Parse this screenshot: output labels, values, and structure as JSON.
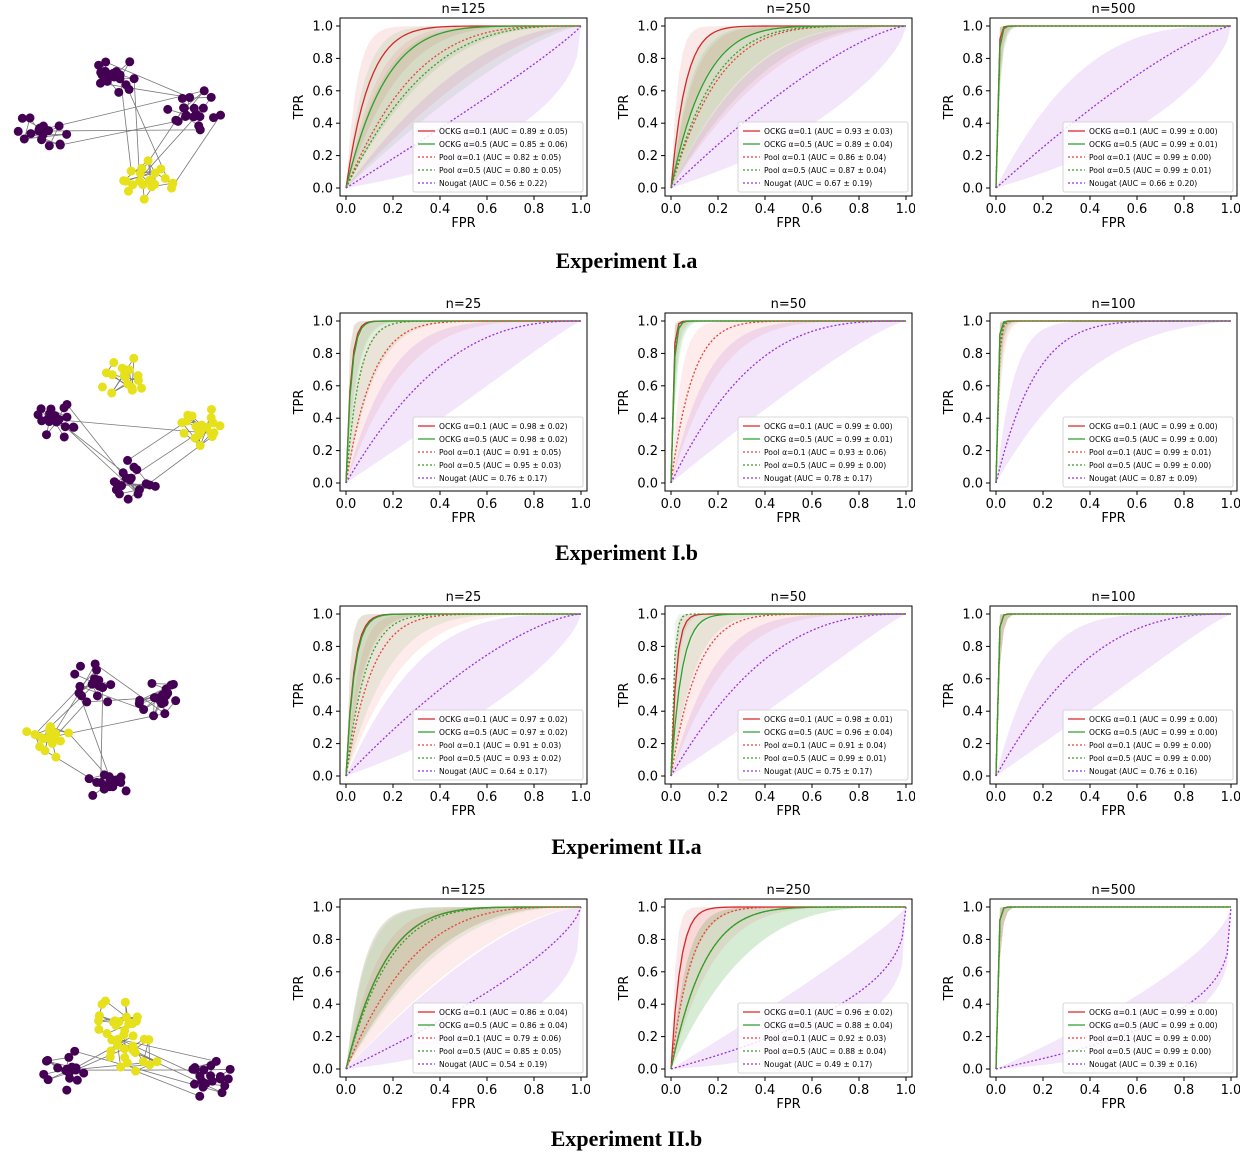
{
  "colors": {
    "ockg01": "#d62728",
    "ockg05": "#2ca02c",
    "pool01": "#e8403a",
    "pool05": "#3a9a2a",
    "nougat": "#9b30d9",
    "purple_node": "#440154",
    "yellow_node": "#e6e11a",
    "edge": "#777777"
  },
  "axis": {
    "xlabel": "FPR",
    "ylabel": "TPR",
    "xticks": [
      "0.0",
      "0.2",
      "0.4",
      "0.6",
      "0.8",
      "1.0"
    ],
    "yticks": [
      "0.0",
      "0.2",
      "0.4",
      "0.6",
      "0.8",
      "1.0"
    ],
    "xlim": [
      0,
      1
    ],
    "ylim": [
      0,
      1
    ]
  },
  "series_labels_tpl": [
    "OCKG α=0.1",
    "OCKG α=0.5",
    "Pool α=0.1",
    "Pool α=0.5",
    "Nougat"
  ],
  "sections": [
    {
      "title": "Experiment I.a",
      "graph": "four-cluster",
      "panels": [
        {
          "n_label": "n=125",
          "auc": [
            "(AUC = 0.89 ± 0.05)",
            "(AUC = 0.85 ± 0.06)",
            "(AUC = 0.82 ± 0.05)",
            "(AUC = 0.80 ± 0.05)",
            "(AUC = 0.56 ± 0.22)"
          ],
          "k": [
            10,
            6,
            3.5,
            3,
            0.9
          ]
        },
        {
          "n_label": "n=250",
          "auc": [
            "(AUC = 0.93 ± 0.03)",
            "(AUC = 0.89 ± 0.04)",
            "(AUC = 0.86 ± 0.04)",
            "(AUC = 0.87 ± 0.04)",
            "(AUC = 0.67 ± 0.19)"
          ],
          "k": [
            16,
            7,
            5,
            5.5,
            1.4
          ]
        },
        {
          "n_label": "n=500",
          "auc": [
            "(AUC = 0.99 ± 0.00)",
            "(AUC = 0.99 ± 0.01)",
            "(AUC = 0.99 ± 0.00)",
            "(AUC = 0.99 ± 0.01)",
            "(AUC = 0.66 ± 0.20)"
          ],
          "k": [
            150,
            120,
            140,
            130,
            1.3
          ]
        }
      ]
    },
    {
      "title": "Experiment I.b",
      "graph": "four-cluster-b",
      "panels": [
        {
          "n_label": "n=25",
          "auc": [
            "(AUC = 0.98 ± 0.02)",
            "(AUC = 0.98 ± 0.02)",
            "(AUC = 0.91 ± 0.05)",
            "(AUC = 0.95 ± 0.03)",
            "(AUC = 0.76 ± 0.17)"
          ],
          "k": [
            50,
            45,
            9,
            18,
            2.5
          ]
        },
        {
          "n_label": "n=50",
          "auc": [
            "(AUC = 0.99 ± 0.00)",
            "(AUC = 0.99 ± 0.01)",
            "(AUC = 0.93 ± 0.06)",
            "(AUC = 0.99 ± 0.00)",
            "(AUC = 0.78 ± 0.17)"
          ],
          "k": [
            120,
            90,
            11,
            100,
            3
          ]
        },
        {
          "n_label": "n=100",
          "auc": [
            "(AUC = 0.99 ± 0.00)",
            "(AUC = 0.99 ± 0.00)",
            "(AUC = 0.99 ± 0.01)",
            "(AUC = 0.99 ± 0.00)",
            "(AUC = 0.87 ± 0.09)"
          ],
          "k": [
            150,
            150,
            100,
            120,
            6
          ]
        }
      ]
    },
    {
      "title": "Experiment II.a",
      "graph": "tree",
      "panels": [
        {
          "n_label": "n=25",
          "auc": [
            "(AUC = 0.97 ± 0.02)",
            "(AUC = 0.97 ± 0.02)",
            "(AUC = 0.91 ± 0.03)",
            "(AUC = 0.93 ± 0.02)",
            "(AUC = 0.64 ± 0.17)"
          ],
          "k": [
            30,
            28,
            9,
            12,
            1.5
          ]
        },
        {
          "n_label": "n=50",
          "auc": [
            "(AUC = 0.98 ± 0.01)",
            "(AUC = 0.96 ± 0.04)",
            "(AUC = 0.91 ± 0.04)",
            "(AUC = 0.99 ± 0.01)",
            "(AUC = 0.75 ± 0.17)"
          ],
          "k": [
            45,
            22,
            9,
            80,
            2.5
          ]
        },
        {
          "n_label": "n=100",
          "auc": [
            "(AUC = 0.99 ± 0.00)",
            "(AUC = 0.99 ± 0.00)",
            "(AUC = 0.99 ± 0.00)",
            "(AUC = 0.99 ± 0.00)",
            "(AUC = 0.76 ± 0.16)"
          ],
          "k": [
            150,
            150,
            150,
            150,
            2.6
          ]
        }
      ]
    },
    {
      "title": "Experiment II.b",
      "graph": "tree-b",
      "panels": [
        {
          "n_label": "n=125",
          "auc": [
            "(AUC = 0.86 ± 0.04)",
            "(AUC = 0.86 ± 0.04)",
            "(AUC = 0.79 ± 0.06)",
            "(AUC = 0.85 ± 0.05)",
            "(AUC = 0.54 ± 0.19)"
          ],
          "k": [
            6,
            6,
            3.5,
            5.5,
            0.7
          ]
        },
        {
          "n_label": "n=250",
          "auc": [
            "(AUC = 0.96 ± 0.02)",
            "(AUC = 0.88 ± 0.04)",
            "(AUC = 0.92 ± 0.03)",
            "(AUC = 0.88 ± 0.04)",
            "(AUC = 0.49 ± 0.17)"
          ],
          "k": [
            25,
            7,
            12,
            7,
            0.4
          ]
        },
        {
          "n_label": "n=500",
          "auc": [
            "(AUC = 0.99 ± 0.00)",
            "(AUC = 0.99 ± 0.00)",
            "(AUC = 0.99 ± 0.00)",
            "(AUC = 0.99 ± 0.00)",
            "(AUC = 0.39 ± 0.16)"
          ],
          "k": [
            150,
            150,
            150,
            150,
            0.3
          ]
        }
      ]
    }
  ],
  "chart_data": [
    {
      "type": "line",
      "title": "n=125",
      "xlabel": "FPR",
      "ylabel": "TPR",
      "xlim": [
        0,
        1
      ],
      "ylim": [
        0,
        1
      ],
      "series": [
        {
          "name": "OCKG α=0.1 (AUC = 0.89 ± 0.05)",
          "auc": 0.89
        },
        {
          "name": "OCKG α=0.5 (AUC = 0.85 ± 0.06)",
          "auc": 0.85
        },
        {
          "name": "Pool α=0.1 (AUC = 0.82 ± 0.05)",
          "auc": 0.82
        },
        {
          "name": "Pool α=0.5 (AUC = 0.80 ± 0.05)",
          "auc": 0.8
        },
        {
          "name": "Nougat (AUC = 0.56 ± 0.22)",
          "auc": 0.56
        }
      ]
    },
    {
      "type": "line",
      "title": "n=250",
      "xlabel": "FPR",
      "ylabel": "TPR",
      "xlim": [
        0,
        1
      ],
      "ylim": [
        0,
        1
      ],
      "series": [
        {
          "name": "OCKG α=0.1 (AUC = 0.93 ± 0.03)",
          "auc": 0.93
        },
        {
          "name": "OCKG α=0.5 (AUC = 0.89 ± 0.04)",
          "auc": 0.89
        },
        {
          "name": "Pool α=0.1 (AUC = 0.86 ± 0.04)",
          "auc": 0.86
        },
        {
          "name": "Pool α=0.5 (AUC = 0.87 ± 0.04)",
          "auc": 0.87
        },
        {
          "name": "Nougat (AUC = 0.67 ± 0.19)",
          "auc": 0.67
        }
      ]
    },
    {
      "type": "line",
      "title": "n=500",
      "xlabel": "FPR",
      "ylabel": "TPR",
      "xlim": [
        0,
        1
      ],
      "ylim": [
        0,
        1
      ],
      "series": [
        {
          "name": "OCKG α=0.1 (AUC = 0.99 ± 0.00)",
          "auc": 0.99
        },
        {
          "name": "OCKG α=0.5 (AUC = 0.99 ± 0.01)",
          "auc": 0.99
        },
        {
          "name": "Pool α=0.1 (AUC = 0.99 ± 0.00)",
          "auc": 0.99
        },
        {
          "name": "Pool α=0.5 (AUC = 0.99 ± 0.01)",
          "auc": 0.99
        },
        {
          "name": "Nougat (AUC = 0.66 ± 0.20)",
          "auc": 0.66
        }
      ]
    },
    {
      "type": "line",
      "title": "n=25",
      "xlabel": "FPR",
      "ylabel": "TPR",
      "xlim": [
        0,
        1
      ],
      "ylim": [
        0,
        1
      ],
      "series": [
        {
          "name": "OCKG α=0.1 (AUC = 0.98 ± 0.02)",
          "auc": 0.98
        },
        {
          "name": "OCKG α=0.5 (AUC = 0.98 ± 0.02)",
          "auc": 0.98
        },
        {
          "name": "Pool α=0.1 (AUC = 0.91 ± 0.05)",
          "auc": 0.91
        },
        {
          "name": "Pool α=0.5 (AUC = 0.95 ± 0.03)",
          "auc": 0.95
        },
        {
          "name": "Nougat (AUC = 0.76 ± 0.17)",
          "auc": 0.76
        }
      ]
    },
    {
      "type": "line",
      "title": "n=50",
      "xlabel": "FPR",
      "ylabel": "TPR",
      "xlim": [
        0,
        1
      ],
      "ylim": [
        0,
        1
      ],
      "series": [
        {
          "name": "OCKG α=0.1 (AUC = 0.99 ± 0.00)",
          "auc": 0.99
        },
        {
          "name": "OCKG α=0.5 (AUC = 0.99 ± 0.01)",
          "auc": 0.99
        },
        {
          "name": "Pool α=0.1 (AUC = 0.93 ± 0.06)",
          "auc": 0.93
        },
        {
          "name": "Pool α=0.5 (AUC = 0.99 ± 0.00)",
          "auc": 0.99
        },
        {
          "name": "Nougat (AUC = 0.78 ± 0.17)",
          "auc": 0.78
        }
      ]
    },
    {
      "type": "line",
      "title": "n=100",
      "xlabel": "FPR",
      "ylabel": "TPR",
      "xlim": [
        0,
        1
      ],
      "ylim": [
        0,
        1
      ],
      "series": [
        {
          "name": "OCKG α=0.1 (AUC = 0.99 ± 0.00)",
          "auc": 0.99
        },
        {
          "name": "OCKG α=0.5 (AUC = 0.99 ± 0.00)",
          "auc": 0.99
        },
        {
          "name": "Pool α=0.1 (AUC = 0.99 ± 0.01)",
          "auc": 0.99
        },
        {
          "name": "Pool α=0.5 (AUC = 0.99 ± 0.00)",
          "auc": 0.99
        },
        {
          "name": "Nougat (AUC = 0.87 ± 0.09)",
          "auc": 0.87
        }
      ]
    },
    {
      "type": "line",
      "title": "n=25",
      "xlabel": "FPR",
      "ylabel": "TPR",
      "xlim": [
        0,
        1
      ],
      "ylim": [
        0,
        1
      ],
      "series": [
        {
          "name": "OCKG α=0.1 (AUC = 0.97 ± 0.02)",
          "auc": 0.97
        },
        {
          "name": "OCKG α=0.5 (AUC = 0.97 ± 0.02)",
          "auc": 0.97
        },
        {
          "name": "Pool α=0.1 (AUC = 0.91 ± 0.03)",
          "auc": 0.91
        },
        {
          "name": "Pool α=0.5 (AUC = 0.93 ± 0.02)",
          "auc": 0.93
        },
        {
          "name": "Nougat (AUC = 0.64 ± 0.17)",
          "auc": 0.64
        }
      ]
    },
    {
      "type": "line",
      "title": "n=50",
      "xlabel": "FPR",
      "ylabel": "TPR",
      "xlim": [
        0,
        1
      ],
      "ylim": [
        0,
        1
      ],
      "series": [
        {
          "name": "OCKG α=0.1 (AUC = 0.98 ± 0.01)",
          "auc": 0.98
        },
        {
          "name": "OCKG α=0.5 (AUC = 0.96 ± 0.04)",
          "auc": 0.96
        },
        {
          "name": "Pool α=0.1 (AUC = 0.91 ± 0.04)",
          "auc": 0.91
        },
        {
          "name": "Pool α=0.5 (AUC = 0.99 ± 0.01)",
          "auc": 0.99
        },
        {
          "name": "Nougat (AUC = 0.75 ± 0.17)",
          "auc": 0.75
        }
      ]
    },
    {
      "type": "line",
      "title": "n=100",
      "xlabel": "FPR",
      "ylabel": "TPR",
      "xlim": [
        0,
        1
      ],
      "ylim": [
        0,
        1
      ],
      "series": [
        {
          "name": "OCKG α=0.1 (AUC = 0.99 ± 0.00)",
          "auc": 0.99
        },
        {
          "name": "OCKG α=0.5 (AUC = 0.99 ± 0.00)",
          "auc": 0.99
        },
        {
          "name": "Pool α=0.1 (AUC = 0.99 ± 0.00)",
          "auc": 0.99
        },
        {
          "name": "Pool α=0.5 (AUC = 0.99 ± 0.00)",
          "auc": 0.99
        },
        {
          "name": "Nougat (AUC = 0.76 ± 0.16)",
          "auc": 0.76
        }
      ]
    },
    {
      "type": "line",
      "title": "n=125",
      "xlabel": "FPR",
      "ylabel": "TPR",
      "xlim": [
        0,
        1
      ],
      "ylim": [
        0,
        1
      ],
      "series": [
        {
          "name": "OCKG α=0.1 (AUC = 0.86 ± 0.04)",
          "auc": 0.86
        },
        {
          "name": "OCKG α=0.5 (AUC = 0.86 ± 0.04)",
          "auc": 0.86
        },
        {
          "name": "Pool α=0.1 (AUC = 0.79 ± 0.06)",
          "auc": 0.79
        },
        {
          "name": "Pool α=0.5 (AUC = 0.85 ± 0.05)",
          "auc": 0.85
        },
        {
          "name": "Nougat (AUC = 0.54 ± 0.19)",
          "auc": 0.54
        }
      ]
    },
    {
      "type": "line",
      "title": "n=250",
      "xlabel": "FPR",
      "ylabel": "TPR",
      "xlim": [
        0,
        1
      ],
      "ylim": [
        0,
        1
      ],
      "series": [
        {
          "name": "OCKG α=0.1 (AUC = 0.96 ± 0.02)",
          "auc": 0.96
        },
        {
          "name": "OCKG α=0.5 (AUC = 0.88 ± 0.04)",
          "auc": 0.88
        },
        {
          "name": "Pool α=0.1 (AUC = 0.92 ± 0.03)",
          "auc": 0.92
        },
        {
          "name": "Pool α=0.5 (AUC = 0.88 ± 0.04)",
          "auc": 0.88
        },
        {
          "name": "Nougat (AUC = 0.49 ± 0.17)",
          "auc": 0.49
        }
      ]
    },
    {
      "type": "line",
      "title": "n=500",
      "xlabel": "FPR",
      "ylabel": "TPR",
      "xlim": [
        0,
        1
      ],
      "ylim": [
        0,
        1
      ],
      "series": [
        {
          "name": "OCKG α=0.1 (AUC = 0.99 ± 0.00)",
          "auc": 0.99
        },
        {
          "name": "OCKG α=0.5 (AUC = 0.99 ± 0.00)",
          "auc": 0.99
        },
        {
          "name": "Pool α=0.1 (AUC = 0.99 ± 0.00)",
          "auc": 0.99
        },
        {
          "name": "Pool α=0.5 (AUC = 0.99 ± 0.00)",
          "auc": 0.99
        },
        {
          "name": "Nougat (AUC = 0.39 ± 0.16)",
          "auc": 0.39
        }
      ]
    }
  ]
}
